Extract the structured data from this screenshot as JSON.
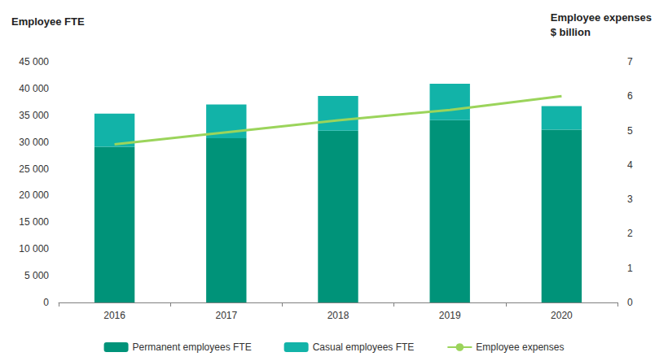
{
  "chart_data": {
    "type": "bar",
    "stacked": true,
    "grid": false,
    "legend": "bottom",
    "y_label": "Employee FTE",
    "y2_label": "Employee expenses\n$ billion",
    "categories": [
      "2016",
      "2017",
      "2018",
      "2019",
      "2020"
    ],
    "series": [
      {
        "name": "Permanent employees FTE",
        "type": "bar",
        "color": "#009379",
        "values": [
          29100,
          30700,
          32100,
          34100,
          32300
        ]
      },
      {
        "name": "Casual employees FTE",
        "type": "bar",
        "color": "#12b3a8",
        "values": [
          6200,
          6300,
          6500,
          6800,
          4400
        ]
      },
      {
        "name": "Employee expenses",
        "type": "line",
        "axis": "y2",
        "color": "#9bd45b",
        "line_style": "solid",
        "values": [
          4.6,
          4.95,
          5.3,
          5.6,
          6.0
        ]
      }
    ],
    "ylim": [
      0,
      45000
    ],
    "yticks": [
      0,
      {
        "value": 5000,
        "label": "5 000"
      },
      {
        "value": 10000,
        "label": "10 000"
      },
      {
        "value": 15000,
        "label": "15 000"
      },
      {
        "value": 20000,
        "label": "20 000"
      },
      {
        "value": 25000,
        "label": "25 000"
      },
      {
        "value": 30000,
        "label": "30 000"
      },
      {
        "value": 35000,
        "label": "35 000"
      },
      {
        "value": 40000,
        "label": "40 000"
      },
      {
        "value": 45000,
        "label": "45 000"
      }
    ],
    "y2lim": [
      0,
      7
    ],
    "y2ticks": [
      0,
      1,
      2,
      3,
      4,
      5,
      6,
      7
    ]
  }
}
